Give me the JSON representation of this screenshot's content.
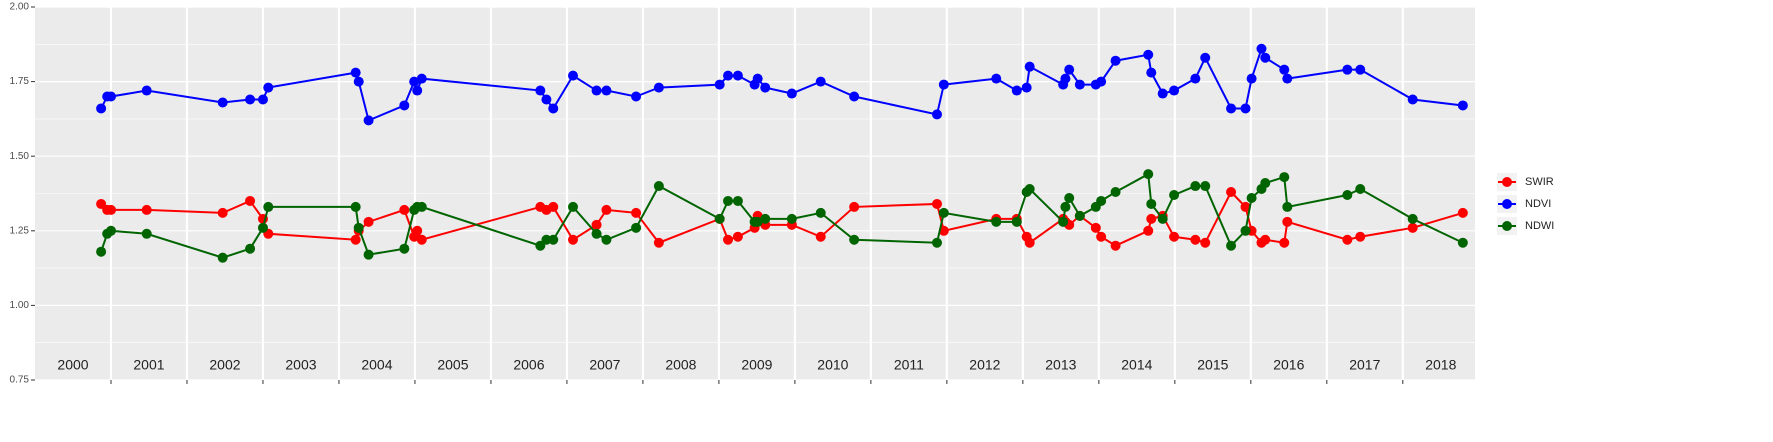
{
  "chart_data": {
    "type": "line",
    "x": [
      2000.87,
      2000.95,
      2001.0,
      2001.47,
      2002.47,
      2002.83,
      2003.0,
      2003.07,
      2004.22,
      2004.26,
      2004.39,
      2004.86,
      2004.99,
      2005.03,
      2005.09,
      2006.65,
      2006.73,
      2006.82,
      2007.08,
      2007.39,
      2007.52,
      2007.91,
      2008.21,
      2009.01,
      2009.12,
      2009.25,
      2009.47,
      2009.51,
      2009.61,
      2009.96,
      2010.34,
      2010.78,
      2011.87,
      2011.96,
      2012.65,
      2012.92,
      2013.05,
      2013.09,
      2013.53,
      2013.56,
      2013.61,
      2013.75,
      2013.96,
      2014.03,
      2014.22,
      2014.65,
      2014.69,
      2014.84,
      2014.99,
      2015.27,
      2015.4,
      2015.74,
      2015.93,
      2016.01,
      2016.14,
      2016.19,
      2016.44,
      2016.48,
      2017.27,
      2017.44,
      2018.13,
      2018.79
    ],
    "series": [
      {
        "name": "SWIR",
        "color": "#ff0000",
        "values": [
          1.34,
          1.32,
          1.32,
          1.32,
          1.31,
          1.35,
          1.29,
          1.24,
          1.22,
          1.25,
          1.28,
          1.32,
          1.23,
          1.25,
          1.22,
          1.33,
          1.32,
          1.33,
          1.22,
          1.27,
          1.32,
          1.31,
          1.21,
          1.29,
          1.22,
          1.23,
          1.26,
          1.3,
          1.27,
          1.27,
          1.23,
          1.33,
          1.34,
          1.25,
          1.29,
          1.29,
          1.23,
          1.21,
          1.29,
          1.28,
          1.27,
          1.3,
          1.26,
          1.23,
          1.2,
          1.25,
          1.29,
          1.3,
          1.23,
          1.22,
          1.21,
          1.38,
          1.33,
          1.25,
          1.21,
          1.22,
          1.21,
          1.28,
          1.22,
          1.23,
          1.26,
          1.31
        ]
      },
      {
        "name": "NDVI",
        "color": "#0000ff",
        "values": [
          1.66,
          1.7,
          1.7,
          1.72,
          1.68,
          1.69,
          1.69,
          1.73,
          1.78,
          1.75,
          1.62,
          1.67,
          1.75,
          1.72,
          1.76,
          1.72,
          1.69,
          1.66,
          1.77,
          1.72,
          1.72,
          1.7,
          1.73,
          1.74,
          1.77,
          1.77,
          1.74,
          1.76,
          1.73,
          1.71,
          1.75,
          1.7,
          1.64,
          1.74,
          1.76,
          1.72,
          1.73,
          1.8,
          1.74,
          1.76,
          1.79,
          1.74,
          1.74,
          1.75,
          1.82,
          1.84,
          1.78,
          1.71,
          1.72,
          1.76,
          1.83,
          1.66,
          1.66,
          1.76,
          1.86,
          1.83,
          1.79,
          1.76,
          1.79,
          1.79,
          1.69,
          1.67
        ]
      },
      {
        "name": "NDWI",
        "color": "#006400",
        "values": [
          1.18,
          1.24,
          1.25,
          1.24,
          1.16,
          1.19,
          1.26,
          1.33,
          1.33,
          1.26,
          1.17,
          1.19,
          1.32,
          1.33,
          1.33,
          1.2,
          1.22,
          1.22,
          1.33,
          1.24,
          1.22,
          1.26,
          1.4,
          1.29,
          1.35,
          1.35,
          1.28,
          1.28,
          1.29,
          1.29,
          1.31,
          1.22,
          1.21,
          1.31,
          1.28,
          1.28,
          1.38,
          1.39,
          1.28,
          1.33,
          1.36,
          1.3,
          1.33,
          1.35,
          1.38,
          1.44,
          1.34,
          1.29,
          1.37,
          1.4,
          1.4,
          1.2,
          1.25,
          1.36,
          1.39,
          1.41,
          1.43,
          1.33,
          1.37,
          1.39,
          1.29,
          1.21
        ]
      }
    ],
    "xlim": [
      2000,
      2018.95
    ],
    "xticks": [
      2001,
      2002,
      2003,
      2004,
      2005,
      2006,
      2007,
      2008,
      2009,
      2010,
      2011,
      2012,
      2013,
      2014,
      2015,
      2016,
      2017,
      2018
    ],
    "year_labels": [
      {
        "value": 2000.5,
        "label": "2000"
      },
      {
        "value": 2001.5,
        "label": "2001"
      },
      {
        "value": 2002.5,
        "label": "2002"
      },
      {
        "value": 2003.5,
        "label": "2003"
      },
      {
        "value": 2004.5,
        "label": "2004"
      },
      {
        "value": 2005.5,
        "label": "2005"
      },
      {
        "value": 2006.5,
        "label": "2006"
      },
      {
        "value": 2007.5,
        "label": "2007"
      },
      {
        "value": 2008.5,
        "label": "2008"
      },
      {
        "value": 2009.5,
        "label": "2009"
      },
      {
        "value": 2010.5,
        "label": "2010"
      },
      {
        "value": 2011.5,
        "label": "2011"
      },
      {
        "value": 2012.5,
        "label": "2012"
      },
      {
        "value": 2013.5,
        "label": "2013"
      },
      {
        "value": 2014.5,
        "label": "2014"
      },
      {
        "value": 2015.5,
        "label": "2015"
      },
      {
        "value": 2016.5,
        "label": "2016"
      },
      {
        "value": 2017.5,
        "label": "2017"
      },
      {
        "value": 2018.5,
        "label": "2018"
      }
    ],
    "ylim": [
      0.75,
      2.0
    ],
    "yticks": [
      {
        "value": 0.75,
        "label": "0.75"
      },
      {
        "value": 1.0,
        "label": "1.00"
      },
      {
        "value": 1.25,
        "label": "1.25"
      },
      {
        "value": 1.5,
        "label": "1.50"
      },
      {
        "value": 1.75,
        "label": "1.75"
      },
      {
        "value": 2.0,
        "label": "2.00"
      }
    ],
    "grid": true,
    "legend": "right"
  }
}
